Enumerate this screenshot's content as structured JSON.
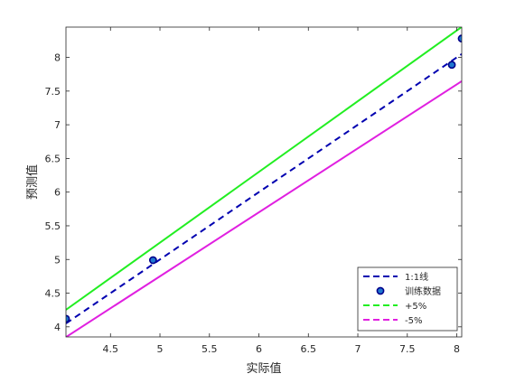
{
  "chart_data": {
    "type": "line",
    "title": "",
    "xlabel": "实际值",
    "ylabel": "预测值",
    "xlim": [
      4.05,
      8.05
    ],
    "ylim": [
      3.85,
      8.45
    ],
    "xticks": [
      4.5,
      5,
      5.5,
      6,
      6.5,
      7,
      7.5,
      8
    ],
    "yticks": [
      4,
      4.5,
      5,
      5.5,
      6,
      6.5,
      7,
      7.5,
      8
    ],
    "xtick_labels": [
      "4.5",
      "5",
      "5.5",
      "6",
      "6.5",
      "7",
      "7.5",
      "8"
    ],
    "ytick_labels": [
      "4",
      "4.5",
      "5",
      "5.5",
      "6",
      "6.5",
      "7",
      "7.5",
      "8"
    ],
    "grid": false,
    "legend_position": "bottom-right",
    "series": [
      {
        "name": "1:1线",
        "kind": "line",
        "style": "dashed",
        "color": "#0000B0",
        "x": [
          4.05,
          8.05
        ],
        "y": [
          4.05,
          8.05
        ]
      },
      {
        "name": "训练数据",
        "kind": "scatter",
        "marker": "circle",
        "color": "#1F77D0",
        "edge": "#00008B",
        "x": [
          4.05,
          4.93,
          7.95,
          8.05
        ],
        "y": [
          4.12,
          4.99,
          7.89,
          8.28
        ]
      },
      {
        "name": "+5%",
        "kind": "line",
        "style": "solid",
        "color": "#22EE22",
        "x": [
          4.05,
          8.05
        ],
        "y": [
          4.2525,
          8.4525
        ]
      },
      {
        "name": "-5%",
        "kind": "line",
        "style": "solid",
        "color": "#E020E0",
        "x": [
          4.05,
          8.05
        ],
        "y": [
          3.8475,
          7.6475
        ]
      }
    ]
  }
}
